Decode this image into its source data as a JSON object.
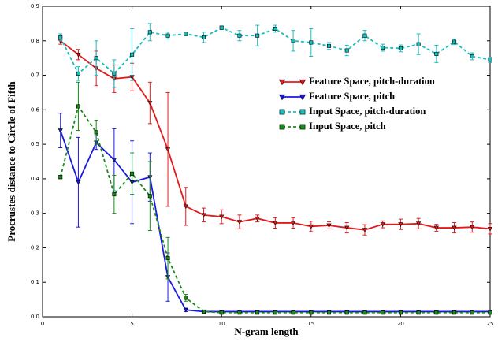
{
  "chart_data": {
    "type": "line",
    "xlabel": "N-gram length",
    "ylabel": "Procrustes distance to Circle of Fifth",
    "x": [
      1,
      2,
      3,
      4,
      5,
      6,
      7,
      8,
      9,
      10,
      11,
      12,
      13,
      14,
      15,
      16,
      17,
      18,
      19,
      20,
      21,
      22,
      23,
      24,
      25
    ],
    "xlim": [
      0,
      25
    ],
    "xticks": [
      0,
      5,
      10,
      15,
      20,
      25
    ],
    "ylim": [
      0,
      0.9
    ],
    "yticks": [
      {
        "value": 0,
        "label": "0.0"
      },
      0.1,
      0.2,
      0.3,
      0.4,
      0.5,
      0.6,
      0.7,
      0.8,
      0.9
    ],
    "legend": "center right",
    "series": [
      {
        "name": "Feature Space, pitch-duration",
        "color": "#e31a1c",
        "linestyle": "solid",
        "marker": "triangle-down",
        "values": [
          0.8,
          0.76,
          0.72,
          0.69,
          0.695,
          0.62,
          0.485,
          0.32,
          0.295,
          0.29,
          0.275,
          0.285,
          0.272,
          0.272,
          0.262,
          0.265,
          0.258,
          0.252,
          0.268,
          0.268,
          0.27,
          0.258,
          0.258,
          0.26,
          0.255
        ],
        "errors": [
          0.01,
          0.015,
          0.05,
          0.04,
          0.04,
          0.06,
          0.165,
          0.055,
          0.02,
          0.02,
          0.02,
          0.01,
          0.015,
          0.015,
          0.015,
          0.01,
          0.015,
          0.015,
          0.01,
          0.015,
          0.015,
          0.01,
          0.015,
          0.015,
          0.015
        ]
      },
      {
        "name": "Feature Space, pitch",
        "color": "#1a1adf",
        "linestyle": "solid",
        "marker": "triangle-down",
        "values": [
          0.54,
          0.39,
          0.505,
          0.455,
          0.39,
          0.405,
          0.115,
          0.02,
          0.015,
          0.015,
          0.015,
          0.015,
          0.015,
          0.015,
          0.015,
          0.015,
          0.015,
          0.015,
          0.015,
          0.015,
          0.015,
          0.015,
          0.015,
          0.015,
          0.015
        ],
        "errors": [
          0.05,
          0.13,
          0.02,
          0.09,
          0.12,
          0.07,
          0.07,
          0.005,
          0.003,
          0.003,
          0.003,
          0.003,
          0.003,
          0.003,
          0.003,
          0.003,
          0.003,
          0.003,
          0.003,
          0.003,
          0.003,
          0.003,
          0.003,
          0.003,
          0.003
        ]
      },
      {
        "name": "Input Space, pitch-duration",
        "color": "#17bfbf",
        "linestyle": "dashed",
        "marker": "square",
        "values": [
          0.81,
          0.705,
          0.75,
          0.705,
          0.76,
          0.825,
          0.815,
          0.82,
          0.81,
          0.838,
          0.815,
          0.815,
          0.835,
          0.8,
          0.795,
          0.785,
          0.772,
          0.815,
          0.78,
          0.778,
          0.79,
          0.762,
          0.797,
          0.755,
          0.745
        ],
        "errors": [
          0.01,
          0.02,
          0.05,
          0.04,
          0.075,
          0.025,
          0.01,
          0.005,
          0.015,
          0.005,
          0.015,
          0.03,
          0.01,
          0.03,
          0.04,
          0.01,
          0.015,
          0.015,
          0.01,
          0.01,
          0.03,
          0.025,
          0.008,
          0.01,
          0.008
        ]
      },
      {
        "name": "Input Space, pitch",
        "color": "#1a8a1a",
        "linestyle": "dashed",
        "marker": "square",
        "values": [
          0.405,
          0.61,
          0.535,
          0.355,
          0.415,
          0.35,
          0.17,
          0.055,
          0.015,
          0.012,
          0.012,
          0.012,
          0.012,
          0.012,
          0.012,
          0.012,
          0.012,
          0.012,
          0.012,
          0.012,
          0.012,
          0.012,
          0.012,
          0.012,
          0.012
        ],
        "errors": [
          0.005,
          0.07,
          0.035,
          0.055,
          0.06,
          0.1,
          0.06,
          0.01,
          0.003,
          0.003,
          0.003,
          0.003,
          0.003,
          0.003,
          0.003,
          0.003,
          0.003,
          0.003,
          0.003,
          0.003,
          0.003,
          0.003,
          0.003,
          0.003,
          0.003
        ]
      }
    ]
  }
}
